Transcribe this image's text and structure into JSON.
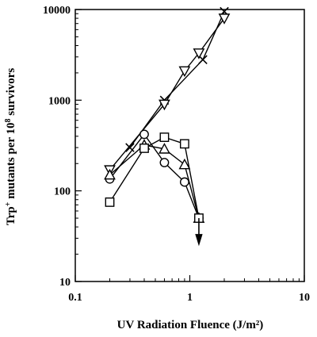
{
  "chart_data": {
    "type": "line",
    "xscale": "log",
    "yscale": "log",
    "xlim": [
      0.1,
      10
    ],
    "ylim": [
      10,
      10000
    ],
    "grid": false,
    "legend": "none",
    "xlabel": "UV Radiation Fluence (J/m²)",
    "ylabel": {
      "prefix": "Trp",
      "sup": "+",
      "mid": " mutants per 10",
      "sup2": "8",
      "suffix": " survivors"
    },
    "x_ticks": [
      {
        "value": 0.1,
        "label": "0.1"
      },
      {
        "value": 1,
        "label": "1"
      },
      {
        "value": 10,
        "label": "10"
      }
    ],
    "y_ticks": [
      {
        "value": 10,
        "label": "10"
      },
      {
        "value": 100,
        "label": "100"
      },
      {
        "value": 1000,
        "label": "1000"
      },
      {
        "value": 10000,
        "label": "10000"
      }
    ],
    "series": [
      {
        "marker": "x",
        "x": [
          0.3,
          0.6,
          1.3,
          2.0
        ],
        "y": [
          300,
          1000,
          2800,
          9500
        ]
      },
      {
        "marker": "inverted-triangle",
        "x": [
          0.2,
          0.6,
          0.9,
          1.2,
          2.0
        ],
        "y": [
          170,
          900,
          2100,
          3300,
          8000
        ]
      },
      {
        "marker": "circle",
        "x": [
          0.2,
          0.4,
          0.6,
          0.9,
          1.2
        ],
        "y": [
          135,
          420,
          205,
          125,
          50
        ]
      },
      {
        "marker": "triangle",
        "x": [
          0.2,
          0.4,
          0.6,
          0.9,
          1.2
        ],
        "y": [
          150,
          320,
          290,
          195,
          50
        ]
      },
      {
        "marker": "square",
        "x": [
          0.2,
          0.4,
          0.6,
          0.9,
          1.2
        ],
        "y": [
          75,
          295,
          390,
          330,
          50
        ]
      }
    ],
    "annotations": [
      {
        "type": "arrow",
        "x": 1.2,
        "y_from": 50,
        "y_to": 27
      }
    ]
  }
}
